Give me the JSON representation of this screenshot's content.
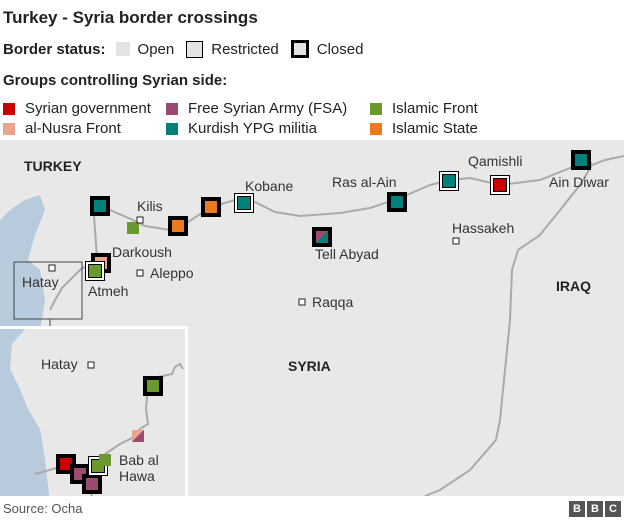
{
  "title": "Turkey - Syria border crossings",
  "status": {
    "label": "Border status:",
    "open": "Open",
    "restricted": "Restricted",
    "closed": "Closed"
  },
  "groups_heading": "Groups controlling Syrian side:",
  "groups": [
    {
      "name": "Syrian government",
      "color": "#cc0000"
    },
    {
      "name": "Free Syrian Army (FSA)",
      "color": "#9b4a72"
    },
    {
      "name": "Islamic Front",
      "color": "#6a9a2e"
    },
    {
      "name": "al-Nusra Front",
      "color": "#e8a58c"
    },
    {
      "name": "Kurdish YPG militia",
      "color": "#00807a"
    },
    {
      "name": "Islamic State",
      "color": "#ec7a1f"
    }
  ],
  "map": {
    "countries": {
      "turkey": "TURKEY",
      "syria": "SYRIA",
      "iraq": "IRAQ"
    },
    "places": {
      "kilis": "Kilis",
      "kobane": "Kobane",
      "ras_al_ain": "Ras al-Ain",
      "qamishli": "Qamishli",
      "ain_diwar": "Ain Diwar",
      "hassakeh": "Hassakeh",
      "tell_abyad": "Tell Abyad",
      "darkoush": "Darkoush",
      "aleppo": "Aleppo",
      "atmeh": "Atmeh",
      "hatay": "Hatay",
      "raqqa": "Raqqa",
      "bab_al_hawa_1": "Bab al",
      "bab_al_hawa_2": "Hawa"
    },
    "crossings": [
      {
        "group": "Kurdish YPG militia",
        "status": "closed"
      },
      {
        "group": "Islamic Front",
        "status": "open"
      },
      {
        "group": "Islamic State",
        "status": "closed"
      },
      {
        "group": "Islamic State",
        "status": "closed"
      },
      {
        "group": "Kurdish YPG militia",
        "status": "restricted",
        "place": "Kobane"
      },
      {
        "group": "al-Nusra Front",
        "status": "closed",
        "place": "Darkoush"
      },
      {
        "group": "Islamic Front",
        "status": "restricted",
        "place": "Atmeh"
      },
      {
        "group": "Free Syrian Army (FSA) / Kurdish YPG militia",
        "status": "closed",
        "place": "Tell Abyad"
      },
      {
        "group": "Kurdish YPG militia",
        "status": "closed",
        "place": "Ras al-Ain"
      },
      {
        "group": "Kurdish YPG militia",
        "status": "restricted"
      },
      {
        "group": "Syrian government",
        "status": "restricted",
        "place": "Qamishli"
      },
      {
        "group": "Kurdish YPG militia",
        "status": "closed",
        "place": "Ain Diwar"
      }
    ],
    "inset_crossings": [
      {
        "group": "Islamic Front",
        "status": "closed"
      },
      {
        "group": "al-Nusra Front / Free Syrian Army (FSA)",
        "status": "open"
      },
      {
        "group": "Syrian government",
        "status": "closed"
      },
      {
        "group": "Free Syrian Army (FSA)",
        "status": "closed"
      },
      {
        "group": "Free Syrian Army (FSA)",
        "status": "closed"
      },
      {
        "group": "Islamic Front",
        "status": "restricted",
        "place": "Bab al Hawa"
      },
      {
        "group": "Islamic Front",
        "status": "open",
        "place": "Bab al Hawa"
      }
    ]
  },
  "footer": {
    "source": "Source: Ocha",
    "logo": "BBC"
  }
}
